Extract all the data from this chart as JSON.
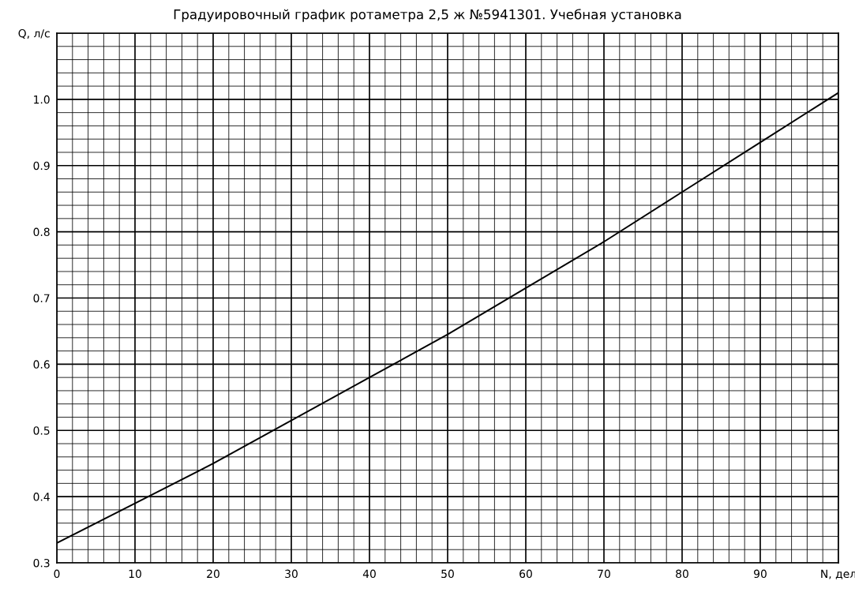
{
  "chart_data": {
    "type": "line",
    "title": "Градуировочный график ротаметра 2,5 ж №5941301. Учебная установка",
    "x": [
      0,
      10,
      20,
      30,
      40,
      50,
      60,
      70,
      80,
      90,
      100
    ],
    "series": [
      {
        "color": "#000000",
        "values": [
          0.33,
          0.39,
          0.45,
          0.515,
          0.58,
          0.645,
          0.715,
          0.785,
          0.86,
          0.935,
          1.01
        ]
      }
    ],
    "xlim": [
      0,
      100
    ],
    "xticks": [
      0,
      10,
      20,
      30,
      40,
      50,
      60,
      70,
      80,
      90,
      {
        "value": 100,
        "label": "N, дел"
      }
    ],
    "ylim": [
      0.3,
      1.1
    ],
    "yticks": [
      0.3,
      0.4,
      0.5,
      0.6,
      0.7,
      0.8,
      0.9,
      {
        "value": 1.0,
        "label": "1.0"
      },
      {
        "value": 1.1,
        "label": "Q, л/с"
      }
    ],
    "grid": true,
    "marker": "none",
    "line_style": "solid"
  }
}
